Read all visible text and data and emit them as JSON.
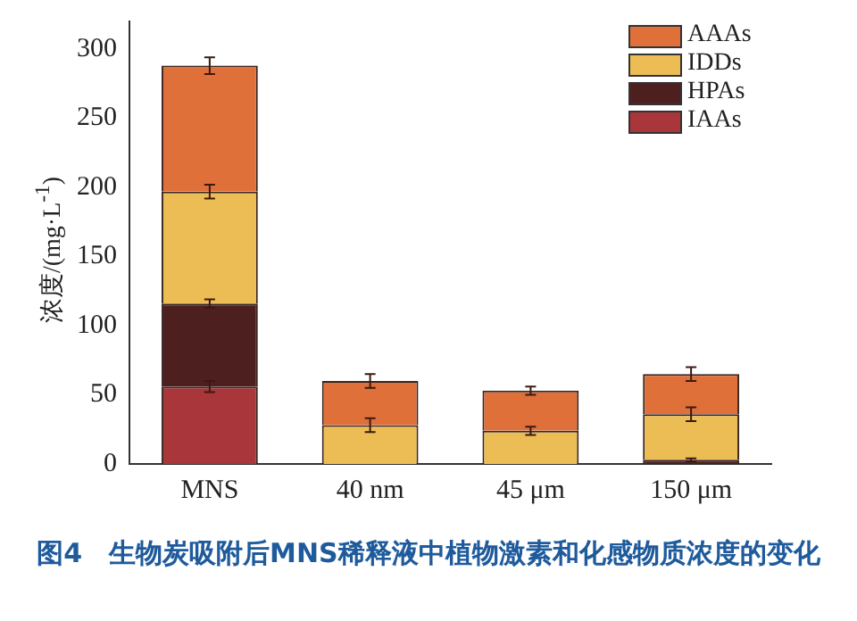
{
  "chart_data": {
    "type": "bar",
    "stacked": true,
    "ylabel": "浓度/(mg·L$^{-1}$)",
    "categories": [
      "MNS",
      "40 nm",
      "45 μm",
      "150 μm"
    ],
    "series": [
      {
        "name": "IAAs",
        "color": "#a8363a",
        "values": [
          56,
          0,
          0,
          0
        ],
        "errors": [
          4,
          null,
          null,
          null
        ]
      },
      {
        "name": "HPAs",
        "color": "#4e1f1f",
        "values": [
          60,
          0,
          null,
          3
        ],
        "errors": [
          3,
          null,
          null,
          1
        ]
      },
      {
        "name": "IDDs",
        "color": "#ecbd55",
        "values": [
          81,
          28,
          24,
          33
        ],
        "errors": [
          5,
          5,
          3,
          5
        ]
      },
      {
        "name": "AAAs",
        "color": "#e0703a",
        "values": [
          91,
          32,
          29,
          29
        ],
        "errors": [
          6,
          5,
          3,
          5
        ]
      }
    ],
    "ylim": [
      0,
      320
    ],
    "yticks": [
      0,
      50,
      100,
      150,
      200,
      250,
      300
    ],
    "grid": false,
    "legend": "top right",
    "annotations": [
      "图4　生物炭吸附后MNS稀释液中植物激素和化感物质浓度的变化"
    ]
  }
}
